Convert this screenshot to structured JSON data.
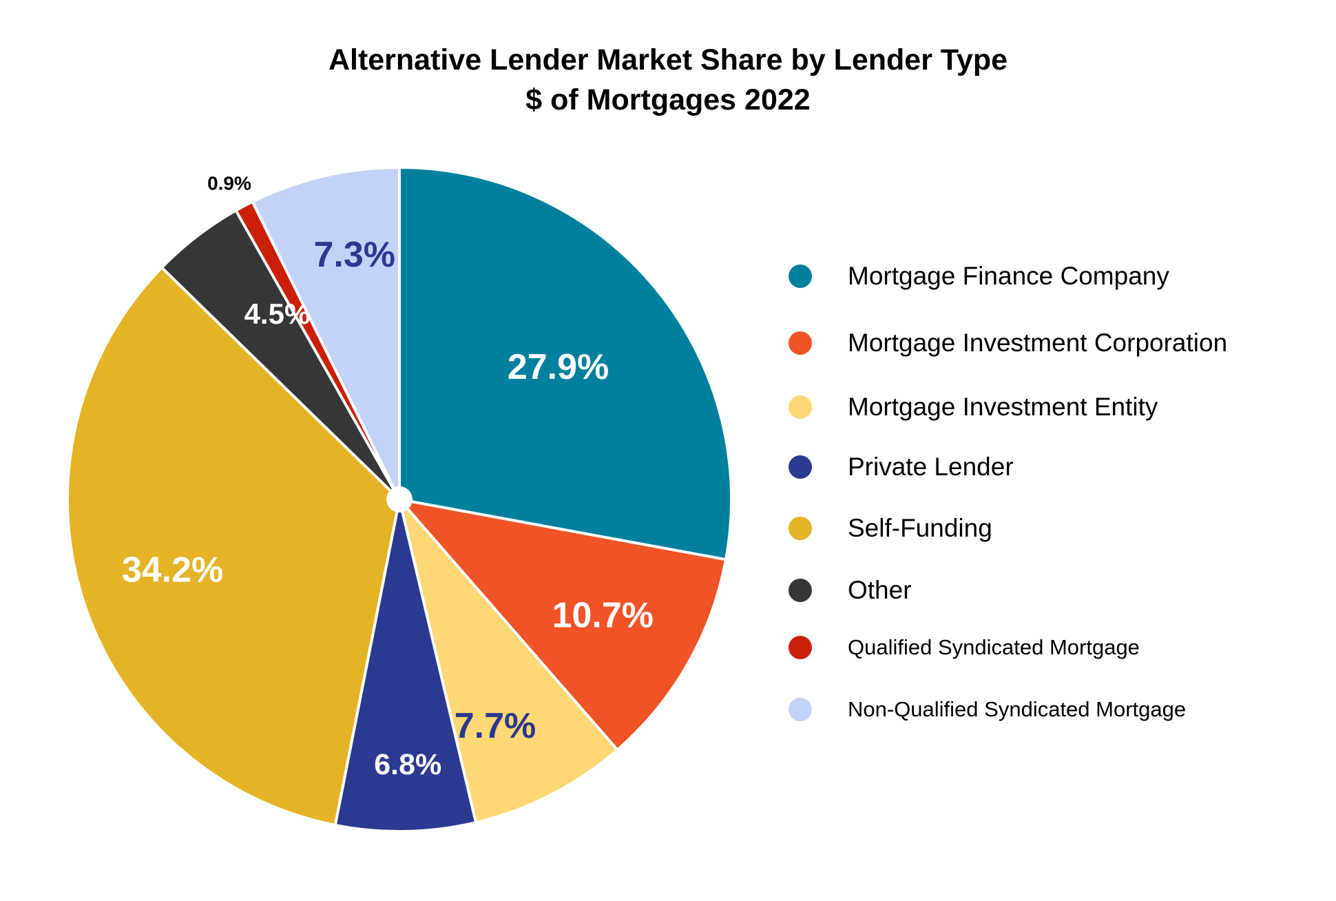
{
  "title": {
    "line1": "Alternative Lender Market Share by Lender Type",
    "line2": "$ of Mortgages 2022"
  },
  "chart_data": {
    "type": "pie",
    "title": "Alternative Lender Market Share by Lender Type $ of Mortgages 2022",
    "legend_position": "right",
    "slices": [
      {
        "name": "Mortgage Finance Company",
        "value": 27.9,
        "label": "27.9%",
        "color": "#00809E",
        "label_color": "#ffffff"
      },
      {
        "name": "Mortgage Investment Corporation",
        "value": 10.7,
        "label": "10.7%",
        "color": "#EF5326",
        "label_color": "#ffffff"
      },
      {
        "name": "Mortgage Investment Entity",
        "value": 7.7,
        "label": "7.7%",
        "color": "#FDD874",
        "label_color": "#2B3990"
      },
      {
        "name": "Private Lender",
        "value": 6.8,
        "label": "6.8%",
        "color": "#2B3990",
        "label_color": "#ffffff"
      },
      {
        "name": "Self-Funding",
        "value": 34.2,
        "label": "34.2%",
        "color": "#E4B426",
        "label_color": "#ffffff"
      },
      {
        "name": "Other",
        "value": 4.5,
        "label": "4.5%",
        "color": "#363638",
        "label_color": "#ffffff"
      },
      {
        "name": "Qualified Syndicated Mortgage",
        "value": 0.9,
        "label": "0.9%",
        "color": "#CC1F0A",
        "label_color": "#000000"
      },
      {
        "name": "Non-Qualified Syndicated Mortgage",
        "value": 7.3,
        "label": "7.3%",
        "color": "#C3D3F8",
        "label_color": "#2B3990"
      }
    ]
  }
}
